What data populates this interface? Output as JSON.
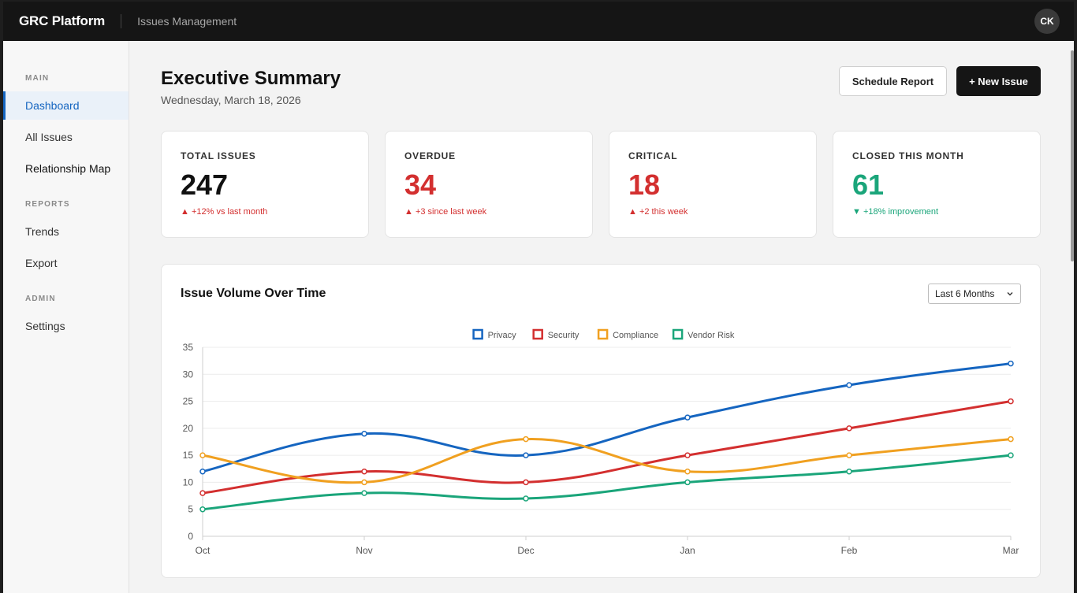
{
  "app": {
    "brand": "GRC Platform",
    "section": "Issues Management",
    "avatar_initials": "CK"
  },
  "sidebar": {
    "groups": [
      {
        "label": "MAIN",
        "items": [
          {
            "label": "Dashboard",
            "active": true
          },
          {
            "label": "All Issues"
          },
          {
            "label": "Relationship Map"
          }
        ]
      },
      {
        "label": "REPORTS",
        "items": [
          {
            "label": "Trends"
          },
          {
            "label": "Export"
          }
        ]
      },
      {
        "label": "ADMIN",
        "items": [
          {
            "label": "Settings"
          }
        ]
      }
    ]
  },
  "header": {
    "title": "Executive Summary",
    "date": "Wednesday, March 18, 2026",
    "schedule_label": "Schedule Report",
    "new_issue_label": "+ New Issue"
  },
  "kpis": [
    {
      "label": "TOTAL ISSUES",
      "value": "247",
      "delta": "▲ +12% vs last month",
      "value_color": "#111111",
      "delta_color": "#d32f2f"
    },
    {
      "label": "OVERDUE",
      "value": "34",
      "delta": "▲ +3 since last week",
      "value_color": "#d32f2f",
      "delta_color": "#d32f2f"
    },
    {
      "label": "CRITICAL",
      "value": "18",
      "delta": "▲ +2 this week",
      "value_color": "#d32f2f",
      "delta_color": "#d32f2f"
    },
    {
      "label": "CLOSED THIS MONTH",
      "value": "61",
      "delta": "▼ +18% improvement",
      "value_color": "#1aa57a",
      "delta_color": "#1aa57a"
    }
  ],
  "chart_card": {
    "title": "Issue Volume Over Time",
    "range_selected": "Last 6 Months"
  },
  "chart_data": {
    "type": "line",
    "title": "",
    "xlabel": "",
    "ylabel": "",
    "categories": [
      "Oct",
      "Nov",
      "Dec",
      "Jan",
      "Feb",
      "Mar"
    ],
    "ylim": [
      0,
      35
    ],
    "yticks": [
      0,
      5,
      10,
      15,
      20,
      25,
      30,
      35
    ],
    "grid": true,
    "legend_position": "top-center",
    "series": [
      {
        "name": "Privacy",
        "color": "#1565c0",
        "values": [
          12,
          19,
          15,
          22,
          28,
          32
        ]
      },
      {
        "name": "Security",
        "color": "#d32f2f",
        "values": [
          8,
          12,
          10,
          15,
          20,
          25
        ]
      },
      {
        "name": "Compliance",
        "color": "#f0a020",
        "values": [
          15,
          10,
          18,
          12,
          15,
          18
        ]
      },
      {
        "name": "Vendor Risk",
        "color": "#1aa57a",
        "values": [
          5,
          8,
          7,
          10,
          12,
          15
        ]
      }
    ]
  }
}
